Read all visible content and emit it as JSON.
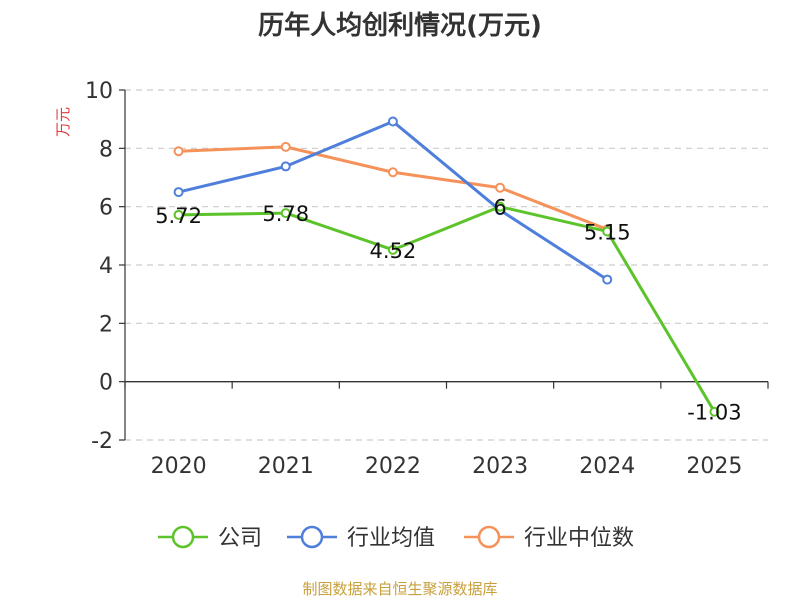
{
  "chart_data": {
    "type": "line",
    "title": "历年人均创利情况(万元)",
    "ylabel": "万元",
    "xlabel": "",
    "categories": [
      "2020",
      "2021",
      "2022",
      "2023",
      "2024",
      "2025"
    ],
    "ylim": [
      -2,
      10
    ],
    "yticks": [
      "-2",
      "0",
      "2",
      "4",
      "6",
      "8",
      "10"
    ],
    "grid": true,
    "legend_position": "bottom",
    "series": [
      {
        "name": "公司",
        "color": "#5cc32a",
        "values": [
          5.72,
          5.78,
          4.52,
          6,
          5.15,
          -1.03
        ],
        "labels": [
          "5.72",
          "5.78",
          "4.52",
          "6",
          "5.15",
          "-1.03"
        ]
      },
      {
        "name": "行业均值",
        "color": "#4f7fdb",
        "values": [
          6.5,
          7.38,
          8.92,
          5.88,
          3.5,
          null
        ]
      },
      {
        "name": "行业中位数",
        "color": "#f5925a",
        "values": [
          7.9,
          8.05,
          7.18,
          6.65,
          5.22,
          null
        ]
      }
    ]
  },
  "footer": "制图数据来自恒生聚源数据库"
}
